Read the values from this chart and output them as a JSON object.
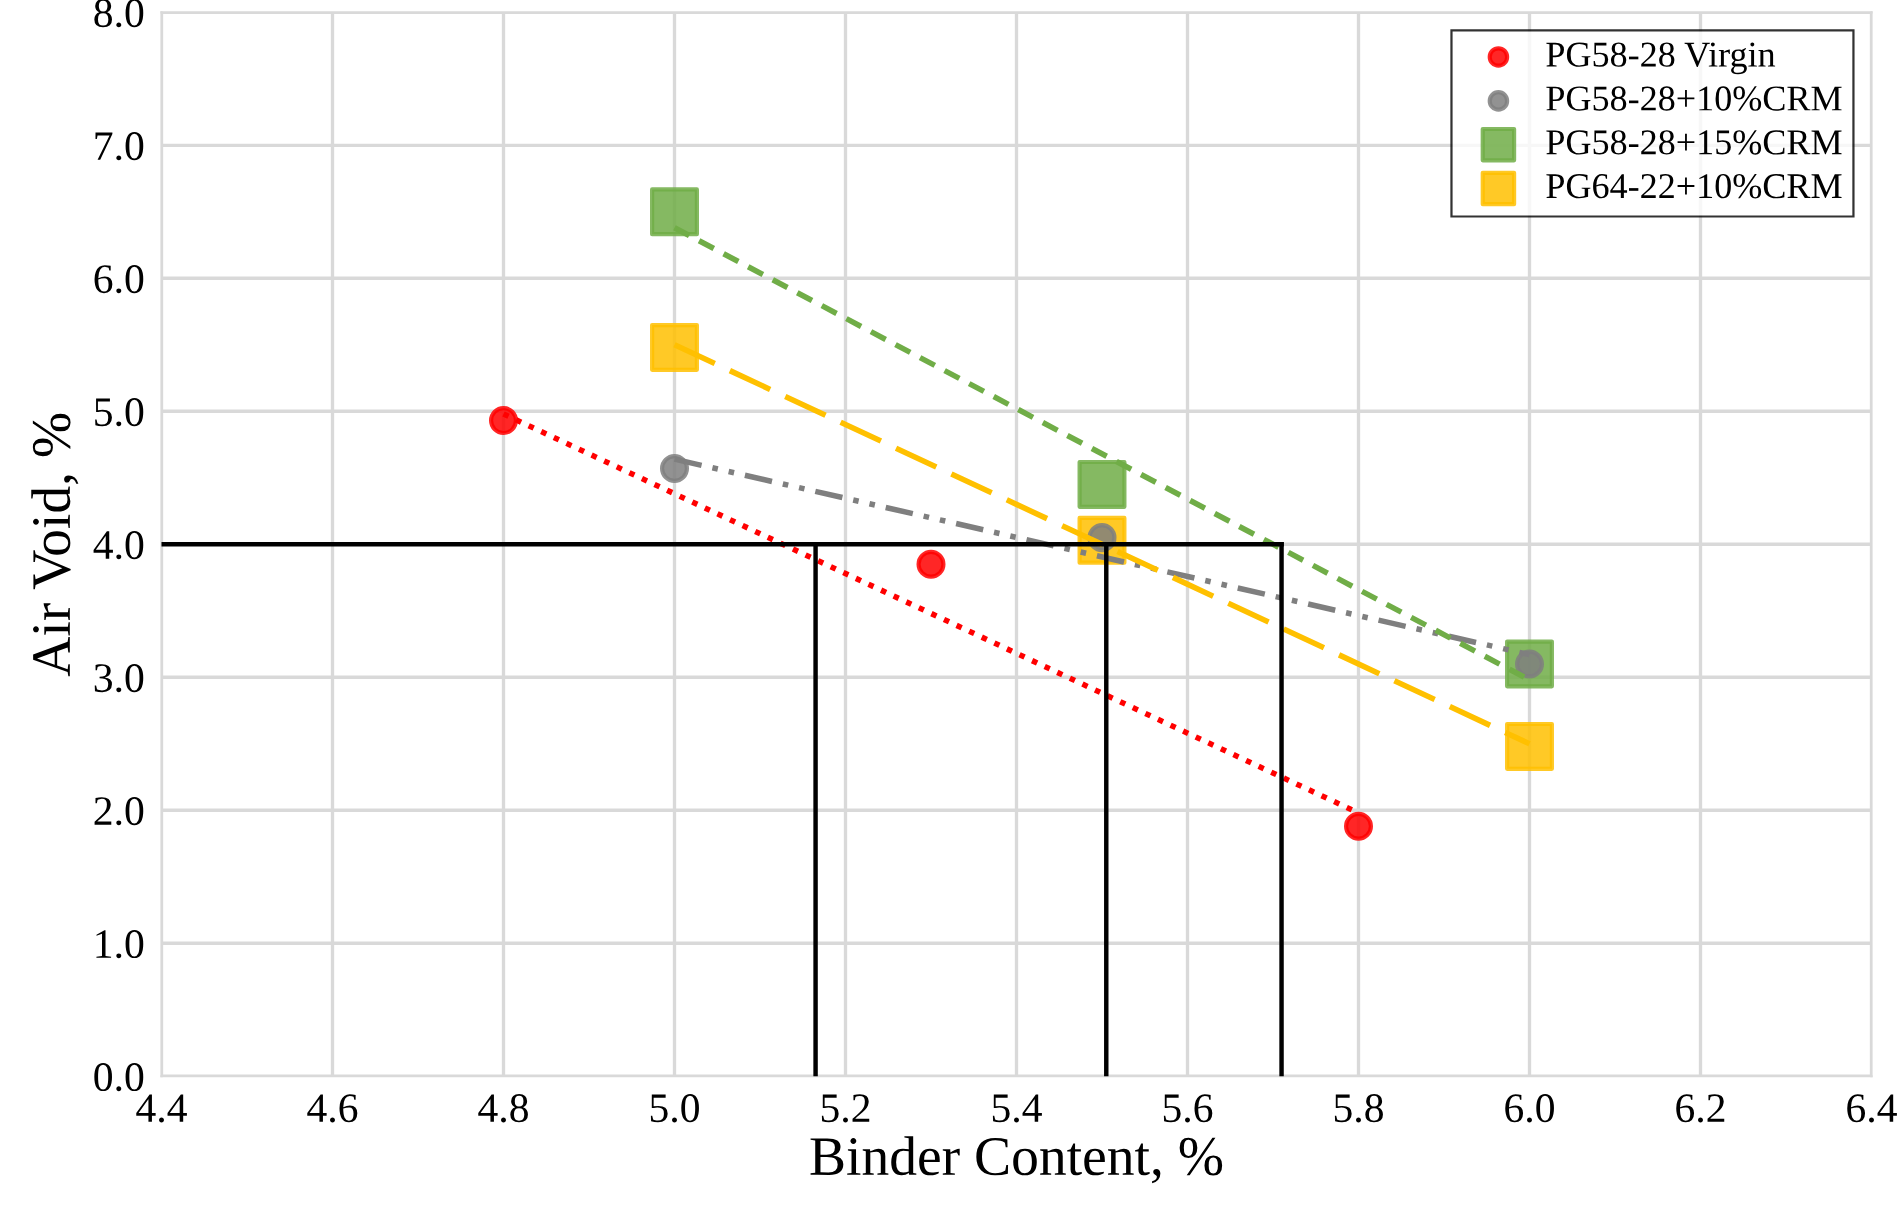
{
  "chart_data": {
    "type": "scatter",
    "xlabel": "Binder Content, %",
    "ylabel": "Air Void, %",
    "xlim": [
      4.4,
      6.4
    ],
    "ylim": [
      0,
      8
    ],
    "xticks": [
      {
        "value": 4.4,
        "label": "4.4"
      },
      {
        "value": 4.6,
        "label": "4.6"
      },
      {
        "value": 4.8,
        "label": "4.8"
      },
      {
        "value": 5.0,
        "label": "5.0"
      },
      {
        "value": 5.2,
        "label": "5.2"
      },
      {
        "value": 5.4,
        "label": "5.4"
      },
      {
        "value": 5.6,
        "label": "5.6"
      },
      {
        "value": 5.8,
        "label": "5.8"
      },
      {
        "value": 6.0,
        "label": "6.0"
      },
      {
        "value": 6.2,
        "label": "6.2"
      },
      {
        "value": 6.4,
        "label": "6.4"
      }
    ],
    "yticks": [
      {
        "value": 0,
        "label": "0.0"
      },
      {
        "value": 1,
        "label": "1.0"
      },
      {
        "value": 2,
        "label": "2.0"
      },
      {
        "value": 3,
        "label": "3.0"
      },
      {
        "value": 4,
        "label": "4.0"
      },
      {
        "value": 5,
        "label": "5.0"
      },
      {
        "value": 6,
        "label": "6.0"
      },
      {
        "value": 7,
        "label": "7.0"
      },
      {
        "value": 8,
        "label": "8.0"
      }
    ],
    "grid": true,
    "legend": "top right",
    "series": [
      {
        "type": "line",
        "color": "#ff0000",
        "line_style": "dotted",
        "marker": "none",
        "x": [
          4.8,
          5.8
        ],
        "values": [
          4.98,
          1.98
        ]
      },
      {
        "type": "line",
        "color": "#7f7f7f",
        "line_style": "dashdot",
        "marker": "none",
        "x": [
          5.0,
          6.0
        ],
        "values": [
          4.64,
          3.17
        ]
      },
      {
        "type": "line",
        "color": "#70ad47",
        "line_style": "dashed",
        "marker": "none",
        "x": [
          5.0,
          6.0
        ],
        "values": [
          6.38,
          2.98
        ]
      },
      {
        "type": "line",
        "color": "#ffc000",
        "line_style": "longdash",
        "marker": "none",
        "x": [
          5.0,
          6.0
        ],
        "values": [
          5.5,
          2.5
        ]
      },
      {
        "type": "line",
        "color": "#000000",
        "line_style": "solid",
        "marker": "none",
        "x": [
          4.4,
          5.71
        ],
        "values": [
          4.0,
          4.0
        ]
      },
      {
        "type": "line",
        "color": "#000000",
        "line_style": "solid",
        "marker": "none",
        "x": [
          5.165,
          5.165
        ],
        "values": [
          0,
          4.0
        ]
      },
      {
        "type": "line",
        "color": "#000000",
        "line_style": "solid",
        "marker": "none",
        "x": [
          5.505,
          5.505
        ],
        "values": [
          0,
          4.0
        ]
      },
      {
        "type": "line",
        "color": "#000000",
        "line_style": "solid",
        "marker": "none",
        "x": [
          5.71,
          5.71
        ],
        "values": [
          0,
          4.0
        ]
      },
      {
        "name": "PG58-28 Virgin",
        "color": "#ff0000",
        "marker": "circle",
        "x": [
          4.8,
          5.3,
          5.8
        ],
        "values": [
          4.93,
          3.85,
          1.88
        ]
      },
      {
        "name": "PG58-28+10%CRM",
        "color": "#7f7f7f",
        "marker": "circle",
        "x": [
          5.0,
          5.5,
          6.0
        ],
        "values": [
          4.57,
          4.05,
          3.1
        ]
      },
      {
        "name": "PG58-28+15%CRM",
        "color": "#70ad47",
        "marker": "square",
        "x": [
          5.0,
          5.5,
          6.0
        ],
        "values": [
          6.5,
          4.45,
          3.1
        ]
      },
      {
        "name": "PG64-22+10%CRM",
        "color": "#ffc000",
        "marker": "square",
        "x": [
          5.0,
          5.5,
          6.0
        ],
        "values": [
          5.48,
          4.03,
          2.48
        ]
      }
    ]
  }
}
